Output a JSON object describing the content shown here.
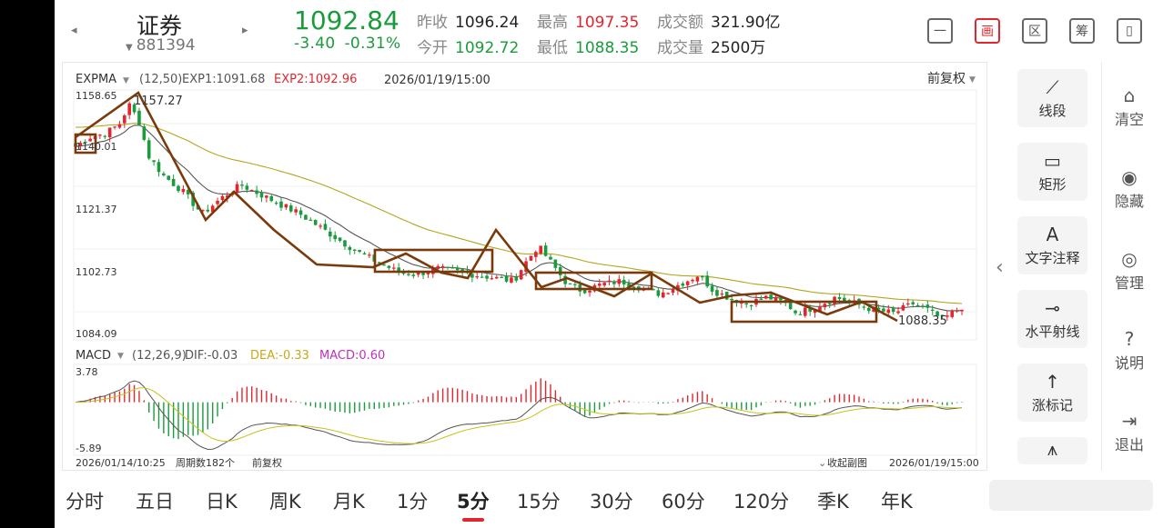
{
  "header": {
    "nav_prev": "◂",
    "nav_next": "▸",
    "stock_name": "证券",
    "stock_code": "881394",
    "price": "1092.84",
    "change": "-3.40",
    "change_pct": "-0.31%",
    "quotes": [
      {
        "label": "昨收",
        "value": "1096.24",
        "tone": "v"
      },
      {
        "label": "最高",
        "value": "1097.35",
        "tone": "red"
      },
      {
        "label": "成交额",
        "value": "321.90亿",
        "tone": "v"
      },
      {
        "label": "今开",
        "value": "1092.72",
        "tone": "green"
      },
      {
        "label": "最低",
        "value": "1088.35",
        "tone": "green"
      },
      {
        "label": "成交量",
        "value": "2500万",
        "tone": "v"
      }
    ],
    "buttons": [
      {
        "name": "minimize-button",
        "label": "一"
      },
      {
        "name": "draw-button",
        "label": "画"
      },
      {
        "name": "range-button",
        "label": "区"
      },
      {
        "name": "chip-button",
        "label": "筹"
      },
      {
        "name": "landscape-button",
        "label": "▯"
      }
    ]
  },
  "main_chart": {
    "indicator": "EXPMA",
    "params": "(12,50)",
    "exp1": "EXP1:1091.68",
    "exp2": "EXP2:1092.96",
    "datetime": "2026/01/19/15:00",
    "adjust": "前复权",
    "y_labels": [
      "1158.65",
      "1140.01",
      "1121.37",
      "1102.73",
      "1084.09"
    ],
    "high_label": "1157.27",
    "low_label": "1088.35"
  },
  "sub_chart": {
    "indicator": "MACD",
    "params": "(12,26,9)",
    "dif": "DIF:-0.03",
    "dea": "DEA:-0.33",
    "macd": "MACD:0.60",
    "y_top": "3.78",
    "y_bottom": "-5.89"
  },
  "footer_axis": {
    "start": "2026/01/14/10:25",
    "period_count": "周期数182个",
    "adjust": "前复权",
    "collapse": "收起副图",
    "end": "2026/01/19/15:00"
  },
  "tools": [
    {
      "name": "line-segment-tool",
      "icon": "⟋",
      "label": "线段"
    },
    {
      "name": "rectangle-tool",
      "icon": "▭",
      "label": "矩形"
    },
    {
      "name": "text-annotation-tool",
      "icon": "A",
      "label": "文字注释"
    },
    {
      "name": "horizontal-ray-tool",
      "icon": "⊸",
      "label": "水平射线"
    },
    {
      "name": "rise-mark-tool",
      "icon": "↑",
      "label": "涨标记"
    },
    {
      "name": "wave-tool",
      "icon": "⩚",
      "label": ""
    }
  ],
  "side_actions": [
    {
      "name": "clear-button",
      "icon": "⌂",
      "label": "清空"
    },
    {
      "name": "hide-button",
      "icon": "◉",
      "label": "隐藏"
    },
    {
      "name": "manage-button",
      "icon": "◎",
      "label": "管理"
    },
    {
      "name": "help-button",
      "icon": "?",
      "label": "说明"
    },
    {
      "name": "exit-button",
      "icon": "⇥",
      "label": "退出"
    }
  ],
  "periods": [
    "分时",
    "五日",
    "日K",
    "周K",
    "月K",
    "1分",
    "5分",
    "15分",
    "30分",
    "60分",
    "120分",
    "季K",
    "年K"
  ],
  "active_period": "5分",
  "colors": {
    "up": "#e3262e",
    "down": "#1a9b3c",
    "annotation": "#7a3b0c",
    "exp1": "#555555",
    "exp2": "#b5a51d",
    "dea": "#c8c21a",
    "macd": "#c030c0"
  }
}
